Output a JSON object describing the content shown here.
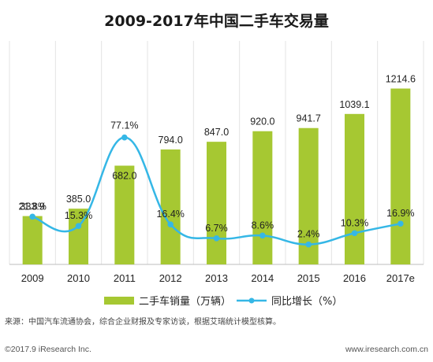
{
  "chart_data": {
    "type": "bar",
    "title": "2009-2017年中国二手车交易量",
    "categories": [
      "2009",
      "2010",
      "2011",
      "2012",
      "2013",
      "2014",
      "2015",
      "2016",
      "2017e"
    ],
    "series": [
      {
        "name": "二手车销量（万辆）",
        "type": "bar",
        "values": [
          333.9,
          385.0,
          682.0,
          794.0,
          847.0,
          920.0,
          941.7,
          1039.1,
          1214.6
        ],
        "labels": [
          "333.9",
          "385.0",
          "682.0",
          "794.0",
          "847.0",
          "920.0",
          "941.7",
          "1039.1",
          "1214.6"
        ],
        "color": "#a6c832"
      },
      {
        "name": "同比增长（%）",
        "type": "line",
        "values": [
          21.8,
          15.3,
          77.1,
          16.4,
          6.7,
          8.6,
          2.4,
          10.3,
          16.9
        ],
        "labels": [
          "21.8%",
          "15.3%",
          "77.1%",
          "16.4%",
          "6.7%",
          "8.6%",
          "2.4%",
          "10.3%",
          "16.9%"
        ],
        "color": "#35b7e6"
      }
    ],
    "grid": true,
    "legend_position": "bottom"
  },
  "source_text": "来源：中国汽车流通协会，综合企业财报及专家访谈，根据艾瑞统计模型核算。",
  "footer": {
    "copyright": "©2017.9 iResearch Inc.",
    "website": "www.iresearch.com.cn"
  }
}
